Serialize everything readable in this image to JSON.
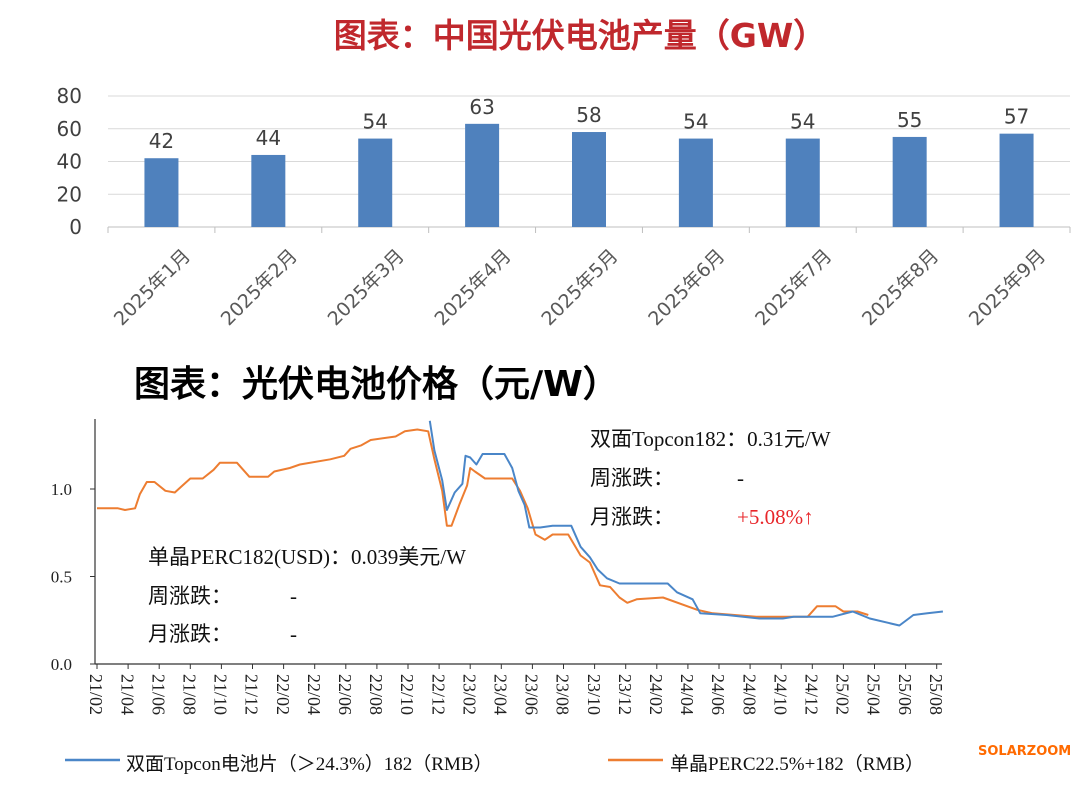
{
  "chart_data": [
    {
      "type": "bar",
      "title": "图表：中国光伏电池产量（GW）",
      "categories": [
        "2025年1月",
        "2025年2月",
        "2025年3月",
        "2025年4月",
        "2025年5月",
        "2025年6月",
        "2025年7月",
        "2025年8月",
        "2025年9月"
      ],
      "values": [
        42,
        44,
        54,
        63,
        58,
        54,
        54,
        55,
        57
      ],
      "ylim": [
        0,
        80
      ],
      "yticks": [
        "0",
        "20",
        "40",
        "60",
        "80"
      ],
      "grid": true,
      "color": "#4f81bd"
    },
    {
      "type": "line",
      "title": "图表：光伏电池价格（元/W）",
      "ylim": [
        0,
        1.4
      ],
      "yticks": [
        "0.0",
        "0.5",
        "1.0"
      ],
      "yticks_values": [
        0,
        0.5,
        1.0
      ],
      "xticks": [
        "21/02",
        "21/04",
        "21/06",
        "21/08",
        "21/10",
        "21/12",
        "22/02",
        "22/04",
        "22/06",
        "22/08",
        "22/10",
        "22/12",
        "23/02",
        "23/04",
        "23/06",
        "23/08",
        "23/10",
        "23/12",
        "24/02",
        "24/04",
        "24/06",
        "24/08",
        "24/10",
        "24/12",
        "25/02",
        "25/04",
        "25/06",
        "25/08"
      ],
      "x_unit": "months since 21/02",
      "legend_position": "bottom",
      "series": [
        {
          "name": "双面Topcon电池片（＞24.3%）182（RMB）",
          "color": "#4a86c8",
          "points": [
            [
              21.4,
              1.39
            ],
            [
              21.7,
              1.22
            ],
            [
              22.2,
              1.05
            ],
            [
              22.5,
              0.88
            ],
            [
              23.0,
              0.98
            ],
            [
              23.5,
              1.03
            ],
            [
              23.7,
              1.19
            ],
            [
              24.0,
              1.18
            ],
            [
              24.4,
              1.14
            ],
            [
              24.8,
              1.2
            ],
            [
              26.2,
              1.2
            ],
            [
              26.7,
              1.12
            ],
            [
              27.1,
              0.99
            ],
            [
              27.5,
              0.91
            ],
            [
              27.8,
              0.78
            ],
            [
              28.5,
              0.78
            ],
            [
              29.3,
              0.79
            ],
            [
              30.5,
              0.79
            ],
            [
              31.1,
              0.67
            ],
            [
              31.7,
              0.61
            ],
            [
              32.2,
              0.54
            ],
            [
              32.8,
              0.49
            ],
            [
              33.6,
              0.46
            ],
            [
              36.7,
              0.46
            ],
            [
              37.3,
              0.41
            ],
            [
              38.3,
              0.37
            ],
            [
              38.8,
              0.29
            ],
            [
              40.5,
              0.28
            ],
            [
              42.6,
              0.26
            ],
            [
              44.1,
              0.26
            ],
            [
              44.8,
              0.27
            ],
            [
              47.3,
              0.27
            ],
            [
              48.6,
              0.3
            ],
            [
              49.7,
              0.26
            ],
            [
              51.6,
              0.22
            ],
            [
              52.5,
              0.28
            ],
            [
              53.4,
              0.29
            ],
            [
              54.4,
              0.3
            ]
          ]
        },
        {
          "name": "单晶PERC22.5%+182（RMB）",
          "color": "#ed7d31",
          "points": [
            [
              0,
              0.89
            ],
            [
              1.35,
              0.89
            ],
            [
              1.8,
              0.88
            ],
            [
              2.45,
              0.89
            ],
            [
              2.75,
              0.97
            ],
            [
              3.2,
              1.04
            ],
            [
              3.7,
              1.04
            ],
            [
              4.4,
              0.99
            ],
            [
              5.0,
              0.98
            ],
            [
              5.5,
              1.02
            ],
            [
              6.0,
              1.06
            ],
            [
              6.8,
              1.06
            ],
            [
              7.5,
              1.11
            ],
            [
              7.9,
              1.15
            ],
            [
              9.0,
              1.15
            ],
            [
              9.8,
              1.07
            ],
            [
              11.0,
              1.07
            ],
            [
              11.4,
              1.1
            ],
            [
              12.4,
              1.12
            ],
            [
              13.05,
              1.14
            ],
            [
              15.0,
              1.17
            ],
            [
              15.9,
              1.19
            ],
            [
              16.3,
              1.23
            ],
            [
              17.0,
              1.25
            ],
            [
              17.6,
              1.28
            ],
            [
              19.2,
              1.3
            ],
            [
              19.8,
              1.33
            ],
            [
              20.6,
              1.34
            ],
            [
              21.3,
              1.33
            ],
            [
              21.7,
              1.17
            ],
            [
              22.2,
              0.99
            ],
            [
              22.5,
              0.79
            ],
            [
              22.8,
              0.79
            ],
            [
              23.3,
              0.91
            ],
            [
              23.8,
              1.02
            ],
            [
              24.0,
              1.12
            ],
            [
              24.3,
              1.1
            ],
            [
              24.95,
              1.06
            ],
            [
              26.7,
              1.06
            ],
            [
              27.2,
              0.99
            ],
            [
              27.7,
              0.89
            ],
            [
              28.2,
              0.74
            ],
            [
              28.8,
              0.71
            ],
            [
              29.3,
              0.74
            ],
            [
              30.3,
              0.74
            ],
            [
              31.1,
              0.62
            ],
            [
              31.7,
              0.58
            ],
            [
              32.35,
              0.45
            ],
            [
              33.0,
              0.44
            ],
            [
              33.6,
              0.38
            ],
            [
              34.1,
              0.35
            ],
            [
              34.7,
              0.37
            ],
            [
              36.4,
              0.38
            ],
            [
              38.6,
              0.31
            ],
            [
              39.6,
              0.29
            ],
            [
              42.4,
              0.27
            ],
            [
              45.7,
              0.27
            ],
            [
              46.3,
              0.33
            ],
            [
              47.5,
              0.33
            ],
            [
              48.0,
              0.3
            ],
            [
              48.9,
              0.3
            ],
            [
              49.6,
              0.28
            ]
          ]
        }
      ],
      "annotations": {
        "topcon": {
          "title": "双面Topcon182：0.31元/W",
          "week_label": "周涨跌：",
          "week_value": "-",
          "month_label": "月涨跌：",
          "month_value": "+5.08%↑",
          "up_color": "#e8262a"
        },
        "perc": {
          "title": "单晶PERC182(USD)：0.039美元/W",
          "week_label": "周涨跌：",
          "week_value": "-",
          "month_label": "月涨跌：",
          "month_value": "-"
        }
      }
    }
  ],
  "watermark": "SOLARZOOM",
  "title_color": "#c0282d"
}
